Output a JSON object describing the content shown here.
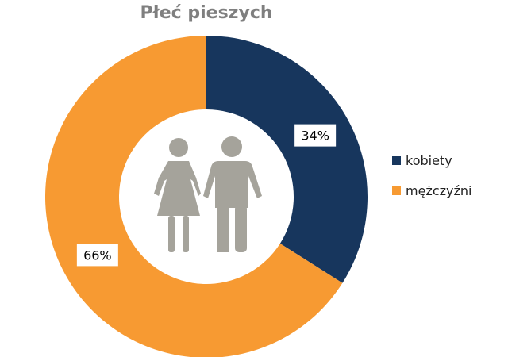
{
  "chart_data": {
    "type": "pie",
    "title": "Płeć pieszych",
    "categories": [
      "kobiety",
      "mężczyźni"
    ],
    "values": [
      34,
      66
    ],
    "data_labels": [
      "34%",
      "66%"
    ],
    "colors": [
      "#17365d",
      "#f79a32"
    ],
    "donut": true,
    "legend_position": "right",
    "center_icon": "couple-icon",
    "center_icon_color": "#a5a39b"
  }
}
